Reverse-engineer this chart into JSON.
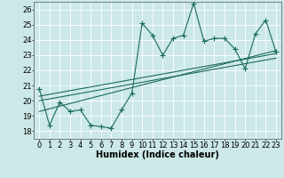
{
  "title": "",
  "xlabel": "Humidex (Indice chaleur)",
  "xlim": [
    -0.5,
    23.5
  ],
  "ylim": [
    17.5,
    26.5
  ],
  "xticks": [
    0,
    1,
    2,
    3,
    4,
    5,
    6,
    7,
    8,
    9,
    10,
    11,
    12,
    13,
    14,
    15,
    16,
    17,
    18,
    19,
    20,
    21,
    22,
    23
  ],
  "yticks": [
    18,
    19,
    20,
    21,
    22,
    23,
    24,
    25,
    26
  ],
  "main_line_color": "#1a6b5a",
  "bg_color": "#cce8e8",
  "main_x": [
    0,
    1,
    2,
    3,
    4,
    5,
    6,
    7,
    8,
    9,
    10,
    11,
    12,
    13,
    14,
    15,
    16,
    17,
    18,
    19,
    20,
    21,
    22,
    23
  ],
  "main_y": [
    20.8,
    18.4,
    19.9,
    19.3,
    19.4,
    18.4,
    18.3,
    18.2,
    19.4,
    20.5,
    25.1,
    24.3,
    23.0,
    24.1,
    24.3,
    26.4,
    23.9,
    24.1,
    24.1,
    23.4,
    22.1,
    24.4,
    25.3,
    23.2
  ],
  "line1_x": [
    0,
    23
  ],
  "line1_y": [
    20.3,
    23.1
  ],
  "line2_x": [
    0,
    23
  ],
  "line2_y": [
    20.0,
    22.8
  ],
  "line3_x": [
    0,
    23
  ],
  "line3_y": [
    19.3,
    23.3
  ],
  "marker": "+",
  "markersize": 4,
  "linewidth": 0.8,
  "fontsize_label": 7,
  "fontsize_tick": 6
}
